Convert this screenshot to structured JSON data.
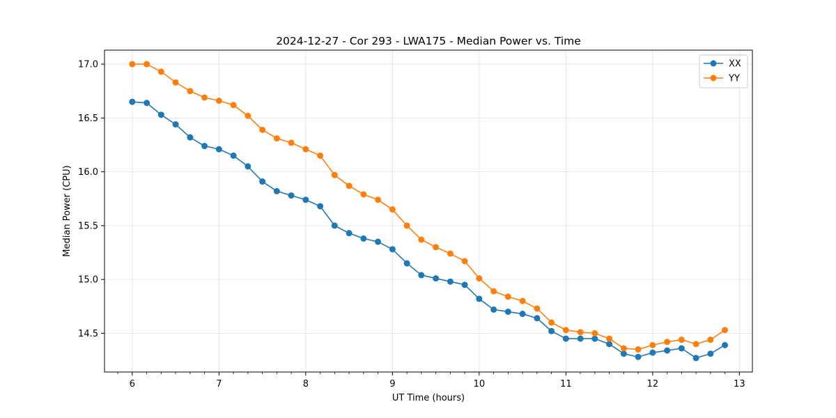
{
  "chart_data": {
    "type": "line",
    "title": "2024-12-27 - Cor 293 - LWA175 - Median Power vs. Time",
    "xlabel": "UT Time (hours)",
    "ylabel": "Median Power (CPU)",
    "xlim": [
      5.68,
      13.15
    ],
    "ylim": [
      14.14,
      17.13
    ],
    "xticks": [
      6,
      7,
      8,
      9,
      10,
      11,
      12,
      13
    ],
    "xtick_labels": [
      "6",
      "7",
      "8",
      "9",
      "10",
      "11",
      "12",
      "13"
    ],
    "yticks": [
      14.5,
      15.0,
      15.5,
      16.0,
      16.5,
      17.0
    ],
    "ytick_labels": [
      "14.5",
      "15.0",
      "15.5",
      "16.0",
      "16.5",
      "17.0"
    ],
    "grid": true,
    "legend_position": "top-right",
    "x": [
      6.0,
      6.167,
      6.333,
      6.5,
      6.667,
      6.833,
      7.0,
      7.167,
      7.333,
      7.5,
      7.667,
      7.833,
      8.0,
      8.167,
      8.333,
      8.5,
      8.667,
      8.833,
      9.0,
      9.167,
      9.333,
      9.5,
      9.667,
      9.833,
      10.0,
      10.167,
      10.333,
      10.5,
      10.667,
      10.833,
      11.0,
      11.167,
      11.333,
      11.5,
      11.667,
      11.833,
      12.0,
      12.167,
      12.333,
      12.5,
      12.667,
      12.833
    ],
    "series": [
      {
        "name": "XX",
        "color": "#1f77b4",
        "values": [
          16.65,
          16.64,
          16.53,
          16.44,
          16.32,
          16.24,
          16.21,
          16.15,
          16.05,
          15.91,
          15.82,
          15.78,
          15.74,
          15.68,
          15.5,
          15.43,
          15.38,
          15.35,
          15.28,
          15.15,
          15.04,
          15.01,
          14.98,
          14.95,
          14.82,
          14.72,
          14.7,
          14.68,
          14.64,
          14.52,
          14.45,
          14.45,
          14.45,
          14.4,
          14.31,
          14.28,
          14.32,
          14.34,
          14.36,
          14.27,
          14.31,
          14.39
        ]
      },
      {
        "name": "YY",
        "color": "#ff7f0e",
        "values": [
          17.0,
          17.0,
          16.93,
          16.83,
          16.75,
          16.69,
          16.66,
          16.62,
          16.52,
          16.39,
          16.31,
          16.27,
          16.21,
          16.15,
          15.97,
          15.87,
          15.79,
          15.74,
          15.65,
          15.5,
          15.37,
          15.3,
          15.24,
          15.17,
          15.01,
          14.89,
          14.84,
          14.8,
          14.73,
          14.6,
          14.53,
          14.51,
          14.5,
          14.45,
          14.36,
          14.35,
          14.39,
          14.42,
          14.44,
          14.4,
          14.44,
          14.53
        ]
      }
    ]
  }
}
